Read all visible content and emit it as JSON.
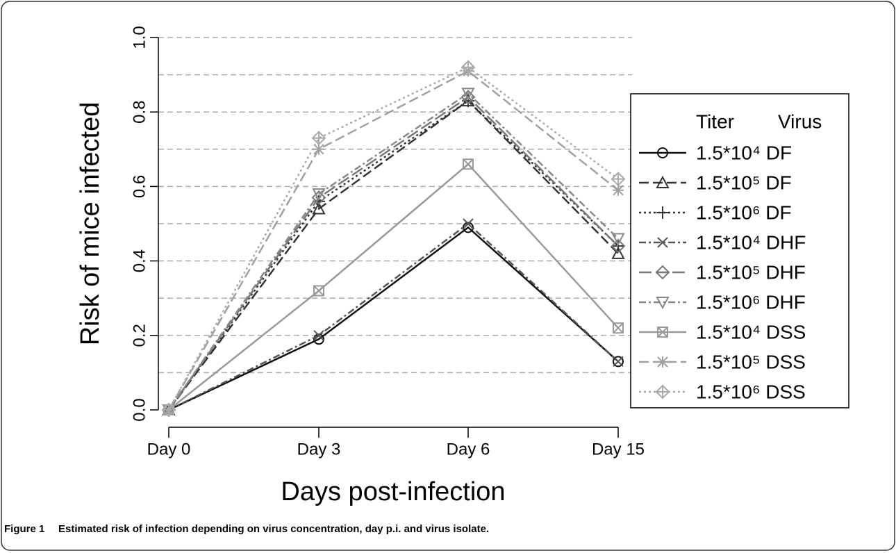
{
  "chart_data": {
    "type": "line",
    "xlabel": "Days post-infection",
    "ylabel": "Risk of mice infected",
    "categories": [
      "Day 0",
      "Day 3",
      "Day 6",
      "Day 15"
    ],
    "ylim": [
      0,
      1
    ],
    "yticks": [
      {
        "value": 0,
        "label": "0.0"
      },
      0.2,
      0.4,
      0.6,
      0.8,
      {
        "value": 1,
        "label": "1.0"
      }
    ],
    "gridlines": [
      0.1,
      0.2,
      0.3,
      0.4,
      0.5,
      0.6,
      0.7,
      0.8,
      0.9,
      1.0
    ],
    "grid": true,
    "legend_title": [
      "Titer",
      "Virus"
    ],
    "legend": "right",
    "series": [
      {
        "name": "1.5*10⁴ DF",
        "color": "#111111",
        "dash": "",
        "marker": "circle",
        "values": [
          0,
          0.19,
          0.49,
          0.13
        ]
      },
      {
        "name": "1.5*10⁵ DF",
        "color": "#333333",
        "dash": "14 6",
        "marker": "triangle",
        "values": [
          0,
          0.54,
          0.83,
          0.42
        ]
      },
      {
        "name": "1.5*10⁶ DF",
        "color": "#333333",
        "dash": "3 4",
        "marker": "plus",
        "values": [
          0,
          0.56,
          0.83,
          0.44
        ]
      },
      {
        "name": "1.5*10⁴ DHF",
        "color": "#555555",
        "dash": "10 4 3 4",
        "marker": "x",
        "values": [
          0,
          0.2,
          0.5,
          0.13
        ]
      },
      {
        "name": "1.5*10⁵ DHF",
        "color": "#777777",
        "dash": "18 6",
        "marker": "diamond",
        "values": [
          0,
          0.57,
          0.84,
          0.44
        ]
      },
      {
        "name": "1.5*10⁶ DHF",
        "color": "#888888",
        "dash": "10 4 3 4",
        "marker": "triangle-down",
        "values": [
          0,
          0.58,
          0.85,
          0.46
        ]
      },
      {
        "name": "1.5*10⁴ DSS",
        "color": "#999999",
        "dash": "",
        "marker": "square-x",
        "values": [
          0,
          0.32,
          0.66,
          0.22
        ]
      },
      {
        "name": "1.5*10⁵ DSS",
        "color": "#a0a0a0",
        "dash": "14 6",
        "marker": "asterisk",
        "values": [
          0,
          0.7,
          0.91,
          0.59
        ]
      },
      {
        "name": "1.5*10⁶ DSS",
        "color": "#aaaaaa",
        "dash": "3 4",
        "marker": "diamond-plus",
        "values": [
          0,
          0.73,
          0.92,
          0.62
        ]
      }
    ]
  },
  "caption": {
    "label": "Figure 1",
    "text": "Estimated risk of infection depending on virus concentration, day p.i. and virus isolate."
  }
}
